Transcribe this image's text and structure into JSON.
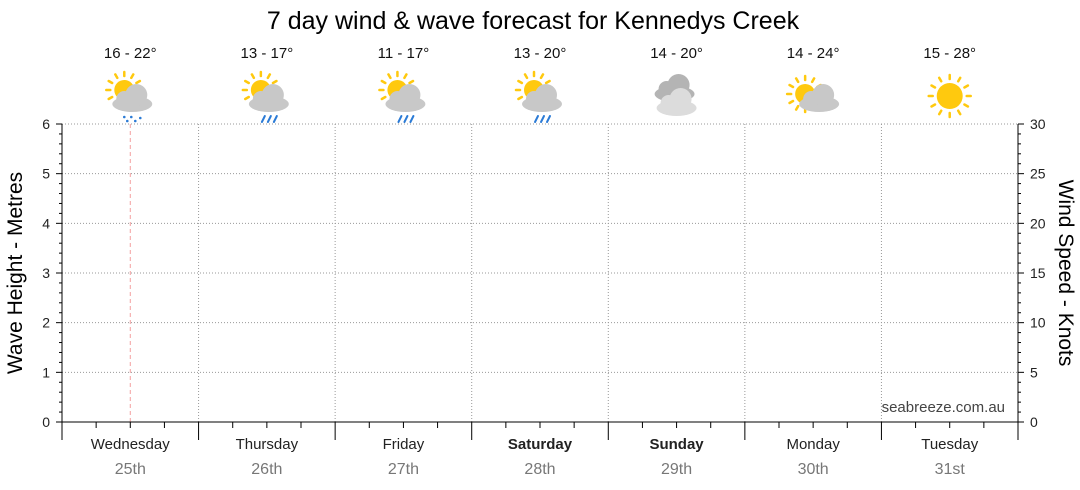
{
  "chart_data": {
    "type": "line",
    "title": "7 day wind & wave forecast for Kennedys Creek",
    "y_left_label": "Wave Height - Metres",
    "y_right_label": "Wind Speed - Knots",
    "y_left_range": [
      0,
      6
    ],
    "y_left_ticks": [
      "0",
      "1",
      "2",
      "3",
      "4",
      "5",
      "6"
    ],
    "y_right_range": [
      0,
      30
    ],
    "y_right_ticks": [
      "0",
      "5",
      "10",
      "15",
      "20",
      "25",
      "30"
    ],
    "grid": true,
    "credit": "seabreeze.com.au",
    "days": [
      {
        "day": "Wednesday",
        "date": "25th",
        "temp": "16 - 22°",
        "icon": "sun-cloud-drizzle-icon",
        "bold": false
      },
      {
        "day": "Thursday",
        "date": "26th",
        "temp": "13 - 17°",
        "icon": "sun-cloud-rain-icon",
        "bold": false
      },
      {
        "day": "Friday",
        "date": "27th",
        "temp": "11 - 17°",
        "icon": "sun-cloud-rain-icon",
        "bold": false
      },
      {
        "day": "Saturday",
        "date": "28th",
        "temp": "13 - 20°",
        "icon": "sun-cloud-rain-icon",
        "bold": true
      },
      {
        "day": "Sunday",
        "date": "29th",
        "temp": "14 - 20°",
        "icon": "cloudy-icon",
        "bold": true
      },
      {
        "day": "Monday",
        "date": "30th",
        "temp": "14 - 24°",
        "icon": "partly-cloudy-icon",
        "bold": false
      },
      {
        "day": "Tuesday",
        "date": "31st",
        "temp": "15 - 28°",
        "icon": "sunny-icon",
        "bold": false
      }
    ],
    "current_day_marker": "Wednesday",
    "series": []
  },
  "colors": {
    "sun": "#FFC90E",
    "cloud": "#C8C8C8",
    "rain": "#2B7BD6",
    "grid": "#999999",
    "marker": "#F4A0A0"
  }
}
